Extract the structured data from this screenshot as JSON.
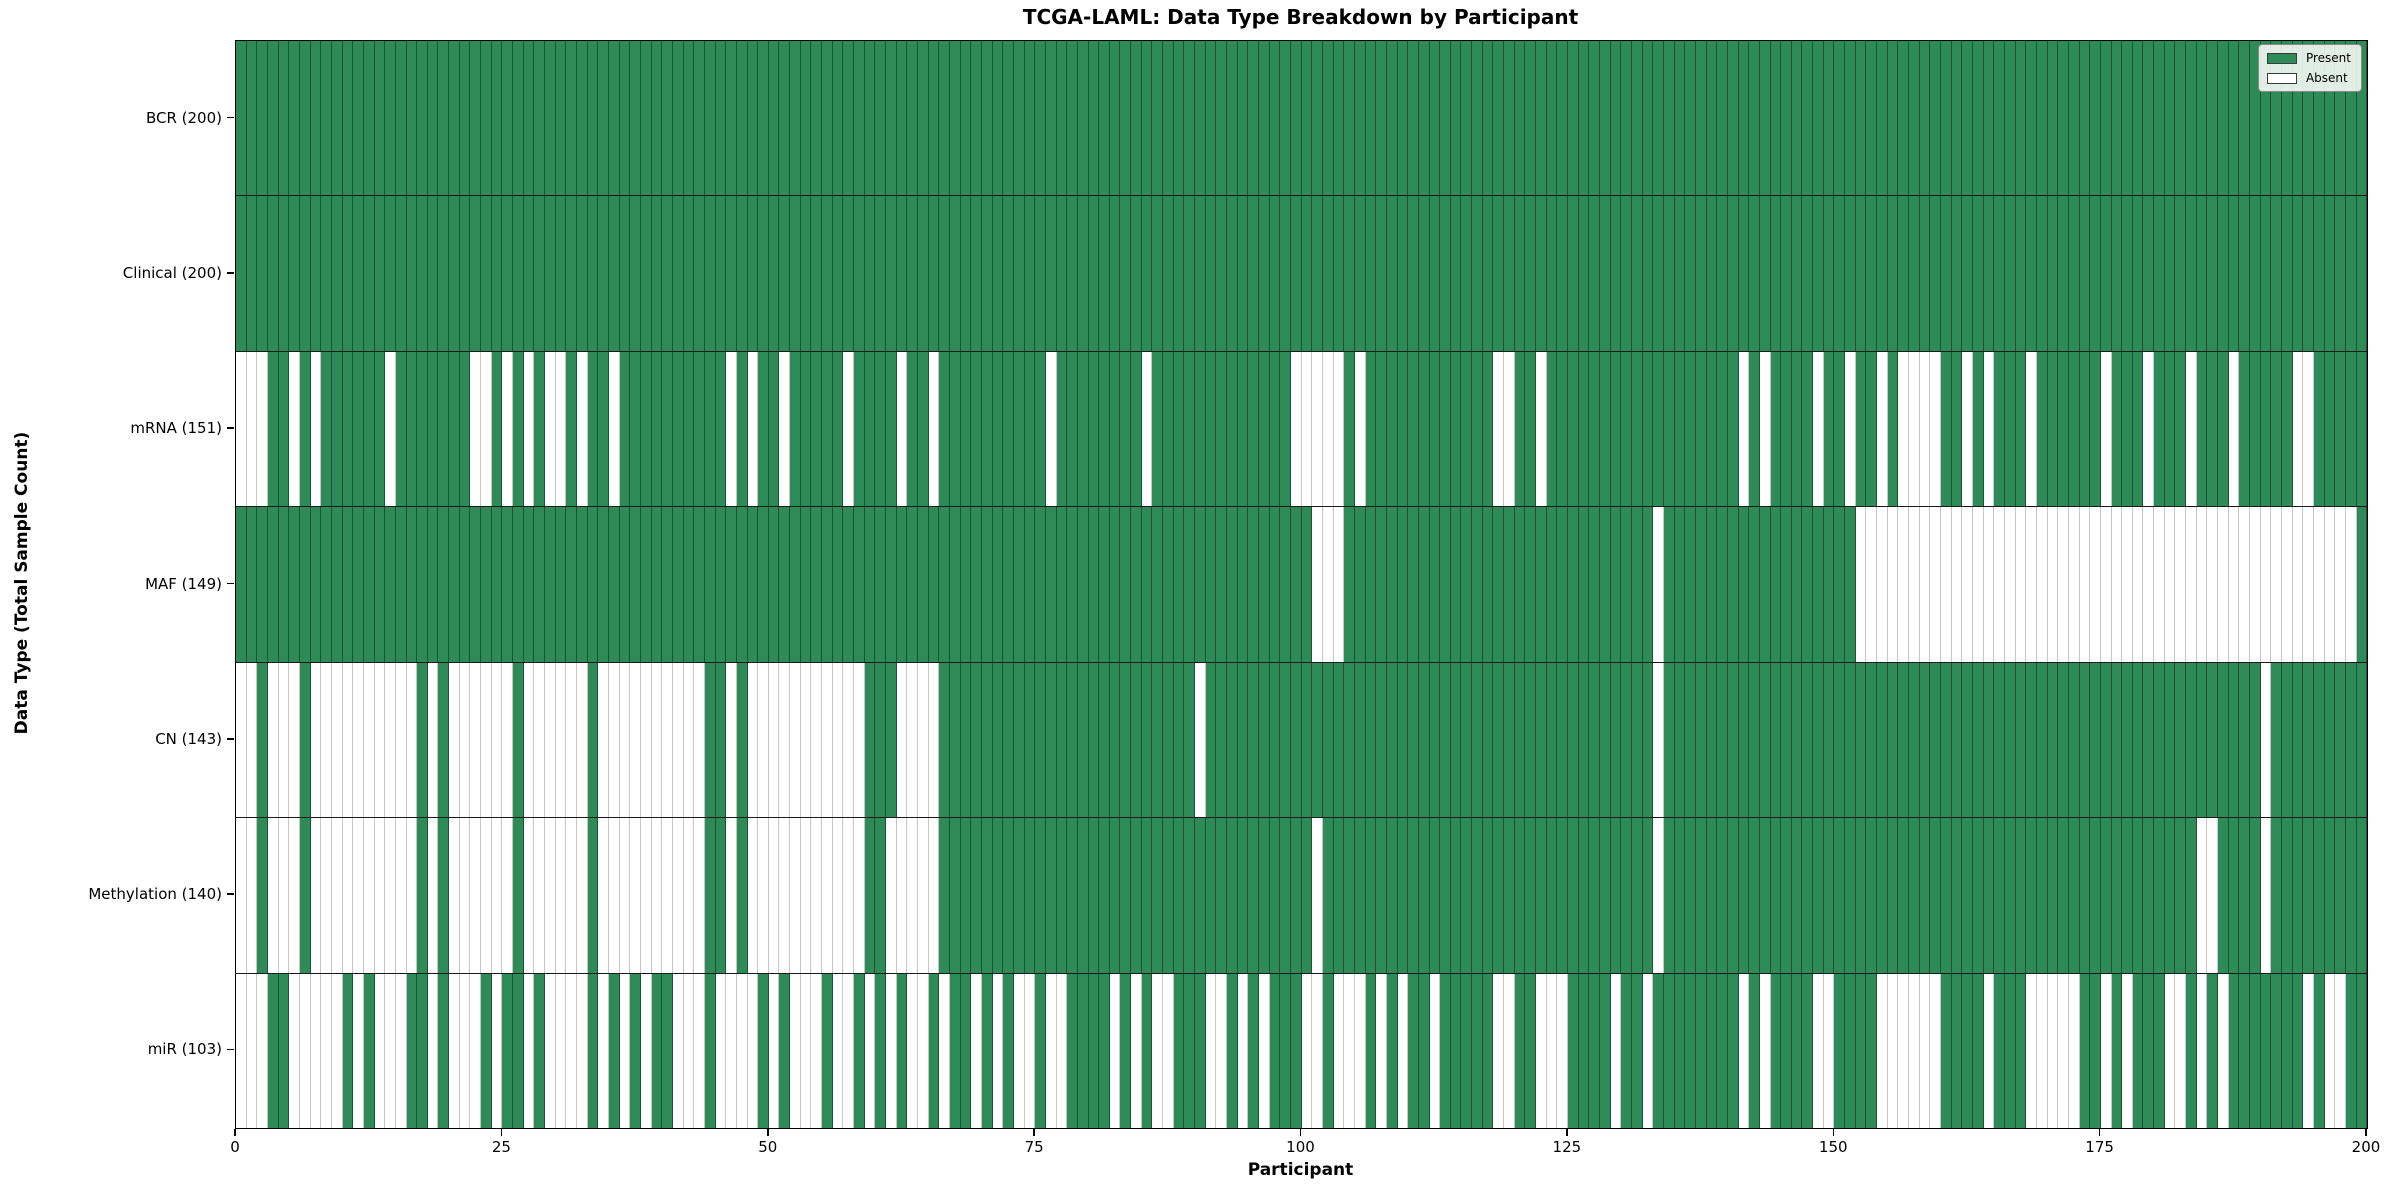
{
  "title": "TCGA-LAML: Data Type Breakdown by Participant",
  "chart_data": {
    "type": "heatmap",
    "title": "TCGA-LAML: Data Type Breakdown by Participant",
    "xlabel": "Participant",
    "ylabel": "Data Type (Total Sample Count)",
    "n_participants": 200,
    "x_range": [
      0,
      200
    ],
    "x_ticks": [
      0,
      25,
      50,
      75,
      100,
      125,
      150,
      175,
      200
    ],
    "grid": false,
    "legend_position": "upper right",
    "legend": [
      {
        "label": "Present",
        "color": "#2e8b57"
      },
      {
        "label": "Absent",
        "color": "#ffffff"
      }
    ],
    "colors": {
      "present": "#2e8b57",
      "absent": "#ffffff",
      "cell_edge": "#1c4e33",
      "plot_border": "#000000"
    },
    "rows": [
      {
        "label": "BCR (200)",
        "data_type": "BCR",
        "present_count": 200,
        "absent_count": 0,
        "absent_indices": []
      },
      {
        "label": "Clinical (200)",
        "data_type": "Clinical",
        "present_count": 200,
        "absent_count": 0,
        "absent_indices": []
      },
      {
        "label": "mRNA (151)",
        "data_type": "mRNA",
        "present_count": 151,
        "absent_count": 49,
        "absent_indices": [
          0,
          1,
          2,
          5,
          7,
          14,
          22,
          23,
          25,
          27,
          29,
          30,
          32,
          35,
          46,
          48,
          51,
          57,
          62,
          65,
          76,
          85,
          99,
          100,
          101,
          102,
          103,
          105,
          118,
          119,
          122,
          141,
          143,
          148,
          151,
          154,
          156,
          157,
          158,
          159,
          162,
          164,
          168,
          175,
          179,
          183,
          187,
          193,
          194
        ]
      },
      {
        "label": "MAF (149)",
        "data_type": "MAF",
        "present_count": 149,
        "absent_count": 51,
        "absent_indices": [
          101,
          102,
          103,
          133,
          152,
          153,
          154,
          155,
          156,
          157,
          158,
          159,
          160,
          161,
          162,
          163,
          164,
          165,
          166,
          167,
          168,
          169,
          170,
          171,
          172,
          173,
          174,
          175,
          176,
          177,
          178,
          179,
          180,
          181,
          182,
          183,
          184,
          185,
          186,
          187,
          188,
          189,
          190,
          191,
          192,
          193,
          194,
          195,
          196,
          197,
          198
        ]
      },
      {
        "label": "CN (143)",
        "data_type": "CN",
        "present_count": 143,
        "absent_count": 57,
        "absent_indices": [
          0,
          1,
          3,
          4,
          5,
          7,
          8,
          9,
          10,
          11,
          12,
          13,
          14,
          15,
          16,
          18,
          20,
          21,
          22,
          23,
          24,
          25,
          27,
          28,
          29,
          30,
          31,
          32,
          34,
          35,
          36,
          37,
          38,
          39,
          40,
          41,
          42,
          43,
          46,
          48,
          49,
          50,
          51,
          52,
          53,
          54,
          55,
          56,
          57,
          58,
          62,
          63,
          64,
          65,
          90,
          133,
          190
        ]
      },
      {
        "label": "Methylation (140)",
        "data_type": "Methylation",
        "present_count": 140,
        "absent_count": 60,
        "absent_indices": [
          0,
          1,
          3,
          4,
          5,
          7,
          8,
          9,
          10,
          11,
          12,
          13,
          14,
          15,
          16,
          18,
          20,
          21,
          22,
          23,
          24,
          25,
          27,
          28,
          29,
          30,
          31,
          32,
          34,
          35,
          36,
          37,
          38,
          39,
          40,
          41,
          42,
          43,
          46,
          48,
          49,
          50,
          51,
          52,
          53,
          54,
          55,
          56,
          57,
          58,
          61,
          62,
          63,
          64,
          65,
          101,
          133,
          184,
          185,
          190
        ]
      },
      {
        "label": "miR (103)",
        "data_type": "miR",
        "present_count": 103,
        "absent_count": 97,
        "absent_indices": [
          0,
          1,
          2,
          5,
          6,
          7,
          8,
          9,
          11,
          13,
          14,
          15,
          18,
          20,
          21,
          22,
          24,
          27,
          29,
          30,
          31,
          32,
          34,
          36,
          38,
          41,
          42,
          43,
          45,
          46,
          47,
          48,
          50,
          52,
          53,
          54,
          56,
          57,
          59,
          61,
          63,
          64,
          66,
          69,
          71,
          73,
          74,
          76,
          77,
          82,
          84,
          86,
          87,
          91,
          92,
          94,
          96,
          100,
          101,
          103,
          104,
          105,
          107,
          109,
          112,
          118,
          119,
          122,
          123,
          124,
          129,
          132,
          141,
          143,
          148,
          149,
          154,
          155,
          156,
          157,
          158,
          159,
          164,
          168,
          169,
          170,
          171,
          172,
          175,
          177,
          181,
          182,
          184,
          186,
          194,
          196,
          197
        ]
      }
    ]
  }
}
